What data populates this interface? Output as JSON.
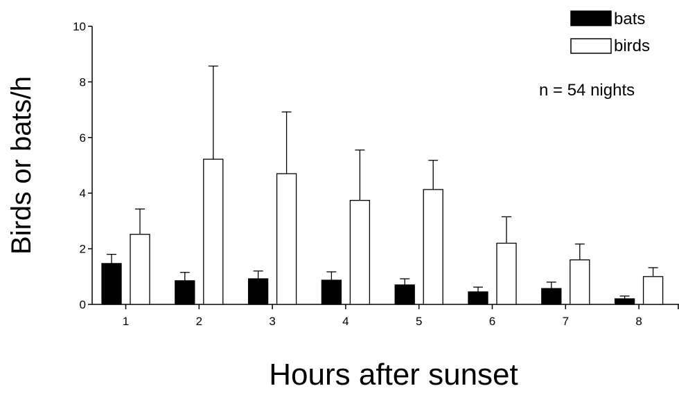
{
  "chart_data": {
    "type": "bar",
    "categories": [
      "1",
      "2",
      "3",
      "4",
      "5",
      "6",
      "7",
      "8"
    ],
    "series": [
      {
        "name": "bats",
        "color": "#000000",
        "values": [
          1.47,
          0.85,
          0.92,
          0.87,
          0.7,
          0.45,
          0.57,
          0.2
        ],
        "error_upper": [
          1.8,
          1.15,
          1.2,
          1.17,
          0.92,
          0.62,
          0.8,
          0.3
        ]
      },
      {
        "name": "birds",
        "color": "#ffffff",
        "values": [
          2.52,
          5.22,
          4.7,
          3.74,
          4.13,
          2.2,
          1.6,
          1.0
        ],
        "error_upper": [
          3.43,
          8.57,
          6.92,
          5.55,
          5.18,
          3.15,
          2.17,
          1.32
        ]
      }
    ],
    "yticks": [
      "0",
      "2",
      "4",
      "6",
      "8",
      "10"
    ],
    "ylim": [
      0,
      10
    ],
    "ylabel": "Birds or bats/h",
    "xlabel": "Hours after sunset",
    "annotation": "n = 54 nights",
    "legend_position": "top-right",
    "grid": false
  }
}
